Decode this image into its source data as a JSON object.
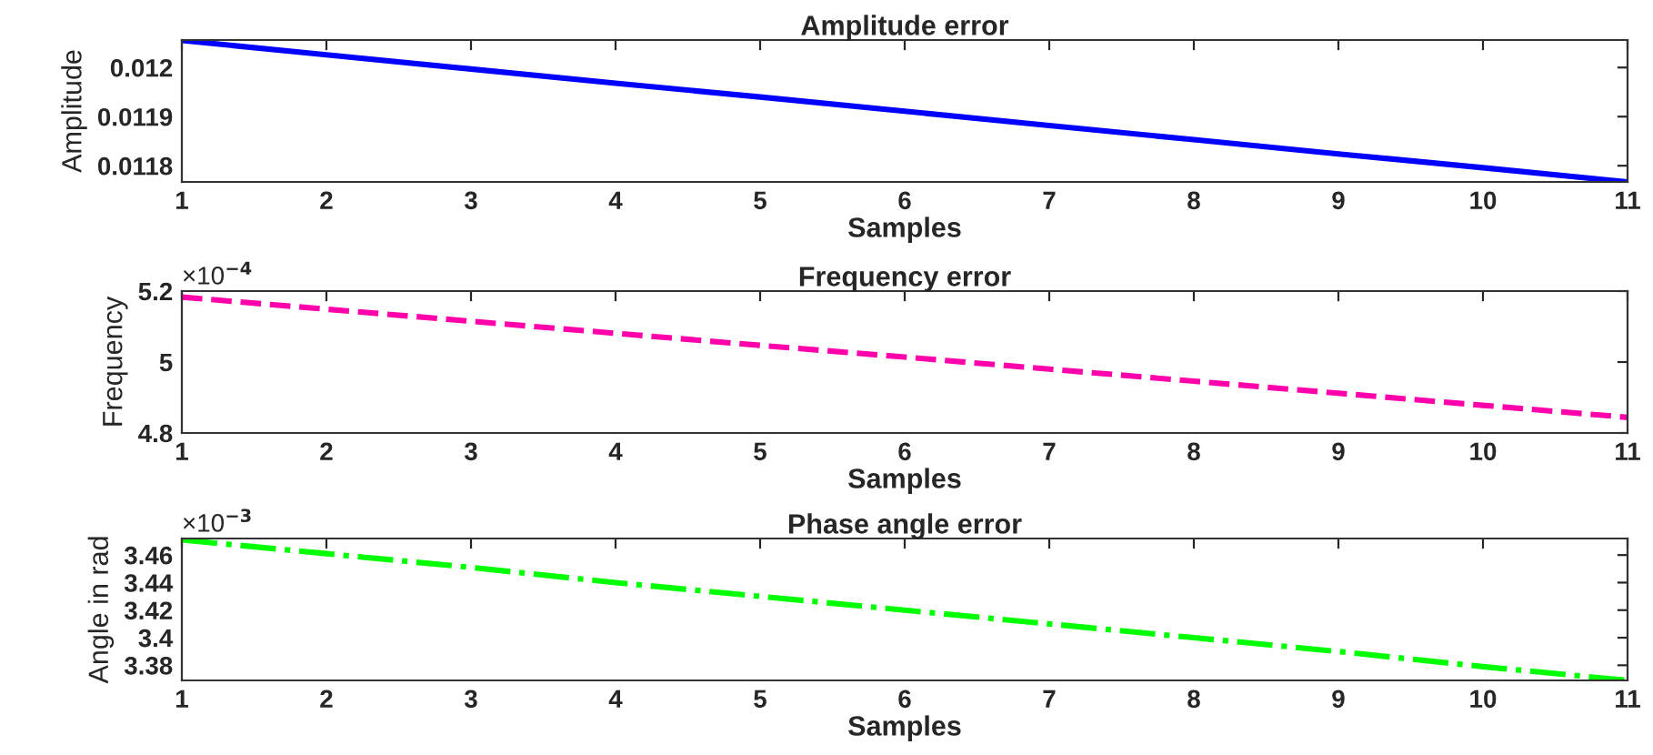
{
  "chart_data": [
    {
      "type": "line",
      "title": "Amplitude error",
      "xlabel": "Samples",
      "ylabel": "Amplitude",
      "x": [
        1,
        2,
        3,
        4,
        5,
        6,
        7,
        8,
        9,
        10,
        11
      ],
      "xlim": [
        1,
        11
      ],
      "xticks": [
        1,
        2,
        3,
        4,
        5,
        6,
        7,
        8,
        9,
        10,
        11
      ],
      "ylim": [
        0.011767,
        0.012056
      ],
      "yticks": [
        0.0118,
        0.0119,
        0.012
      ],
      "series": [
        {
          "color": "#0000ff",
          "values": [
            0.012055,
            0.012026,
            0.011997,
            0.011968,
            0.01194,
            0.011911,
            0.011882,
            0.011853,
            0.011824,
            0.011796,
            0.011767
          ],
          "line_style": "solid"
        }
      ],
      "grid": false
    },
    {
      "type": "line",
      "title": "Frequency error",
      "xlabel": "Samples",
      "ylabel": "Frequency",
      "x": [
        1,
        2,
        3,
        4,
        5,
        6,
        7,
        8,
        9,
        10,
        11
      ],
      "xlim": [
        1,
        11
      ],
      "xticks": [
        1,
        2,
        3,
        4,
        5,
        6,
        7,
        8,
        9,
        10,
        11
      ],
      "ylim": [
        4.8,
        5.2
      ],
      "yticks": [
        4.8,
        5,
        5.2
      ],
      "annotations": [
        "×10$^{−4}$"
      ],
      "series": [
        {
          "color": "#ff00aa",
          "values": [
            5.183,
            5.149,
            5.115,
            5.081,
            5.047,
            5.014,
            4.98,
            4.946,
            4.912,
            4.878,
            4.844
          ],
          "line_style": "dashed"
        }
      ],
      "grid": false
    },
    {
      "type": "line",
      "title": "Phase angle error",
      "xlabel": "Samples",
      "ylabel": "Angle in rad",
      "x": [
        1,
        2,
        3,
        4,
        5,
        6,
        7,
        8,
        9,
        10,
        11
      ],
      "xlim": [
        1,
        11
      ],
      "xticks": [
        1,
        2,
        3,
        4,
        5,
        6,
        7,
        8,
        9,
        10,
        11
      ],
      "ylim": [
        3.369,
        3.472
      ],
      "yticks": [
        3.38,
        3.4,
        3.42,
        3.44,
        3.46
      ],
      "annotations": [
        "×10$^{−3}$"
      ],
      "series": [
        {
          "color": "#00ff00",
          "values": [
            3.471,
            3.461,
            3.451,
            3.44,
            3.43,
            3.42,
            3.41,
            3.4,
            3.39,
            3.379,
            3.369
          ],
          "line_style": "dashdot"
        }
      ],
      "grid": false
    }
  ]
}
